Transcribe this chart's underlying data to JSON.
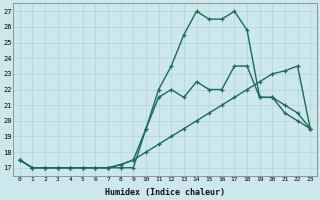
{
  "xlabel": "Humidex (Indice chaleur)",
  "ylabel": "",
  "bg_color": "#cce8ec",
  "line_color": "#1a6b5a",
  "grid_color": "#b0d4d8",
  "xlim": [
    -0.5,
    23.5
  ],
  "ylim": [
    16.5,
    27.5
  ],
  "xticks": [
    0,
    1,
    2,
    3,
    4,
    5,
    6,
    7,
    8,
    9,
    10,
    11,
    12,
    13,
    14,
    15,
    16,
    17,
    18,
    19,
    20,
    21,
    22,
    23
  ],
  "yticks": [
    17,
    18,
    19,
    20,
    21,
    22,
    23,
    24,
    25,
    26,
    27
  ],
  "line1_x": [
    0,
    1,
    2,
    3,
    4,
    5,
    6,
    7,
    8,
    9,
    10,
    11,
    12,
    13,
    14,
    15,
    16,
    17,
    18,
    19,
    20,
    21,
    22,
    23
  ],
  "line1_y": [
    17.5,
    17.0,
    17.0,
    17.0,
    17.0,
    17.0,
    17.0,
    17.0,
    17.2,
    17.5,
    18.0,
    18.5,
    19.0,
    19.5,
    20.0,
    20.5,
    21.0,
    21.5,
    22.0,
    22.5,
    23.0,
    23.2,
    23.5,
    19.5
  ],
  "line2_x": [
    0,
    1,
    2,
    3,
    4,
    5,
    6,
    7,
    8,
    9,
    10,
    11,
    12,
    13,
    14,
    15,
    16,
    17,
    18,
    19,
    20,
    21,
    22,
    23
  ],
  "line2_y": [
    17.5,
    17.0,
    17.0,
    17.0,
    17.0,
    17.0,
    17.0,
    17.0,
    17.2,
    17.5,
    19.5,
    21.5,
    22.0,
    21.5,
    22.5,
    22.0,
    22.0,
    23.5,
    23.5,
    21.5,
    21.5,
    21.0,
    20.5,
    19.5
  ],
  "line3_x": [
    0,
    1,
    2,
    3,
    4,
    5,
    6,
    7,
    8,
    9,
    10,
    11,
    12,
    13,
    14,
    15,
    16,
    17,
    18,
    19,
    20,
    21,
    22,
    23
  ],
  "line3_y": [
    17.5,
    17.0,
    17.0,
    17.0,
    17.0,
    17.0,
    17.0,
    17.0,
    17.0,
    17.0,
    19.5,
    22.0,
    23.5,
    25.5,
    27.0,
    26.5,
    26.5,
    27.0,
    25.8,
    21.5,
    21.5,
    20.5,
    20.0,
    19.5
  ]
}
